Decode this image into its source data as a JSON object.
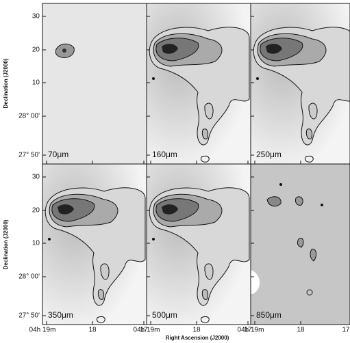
{
  "y_axis_label": "Declination (J2000)",
  "x_axis_label": "Right Ascension (J2000)",
  "panels": [
    {
      "label": "70μm"
    },
    {
      "label": "160μm"
    },
    {
      "label": "250μm"
    },
    {
      "label": "350μm"
    },
    {
      "label": "500μm"
    },
    {
      "label": "850μm"
    }
  ],
  "y_tick_labels": [
    "30",
    "20",
    "10",
    "28° 00'",
    "27° 50'"
  ],
  "x_tick_labels": [
    "04h 19m",
    "18",
    "17"
  ]
}
